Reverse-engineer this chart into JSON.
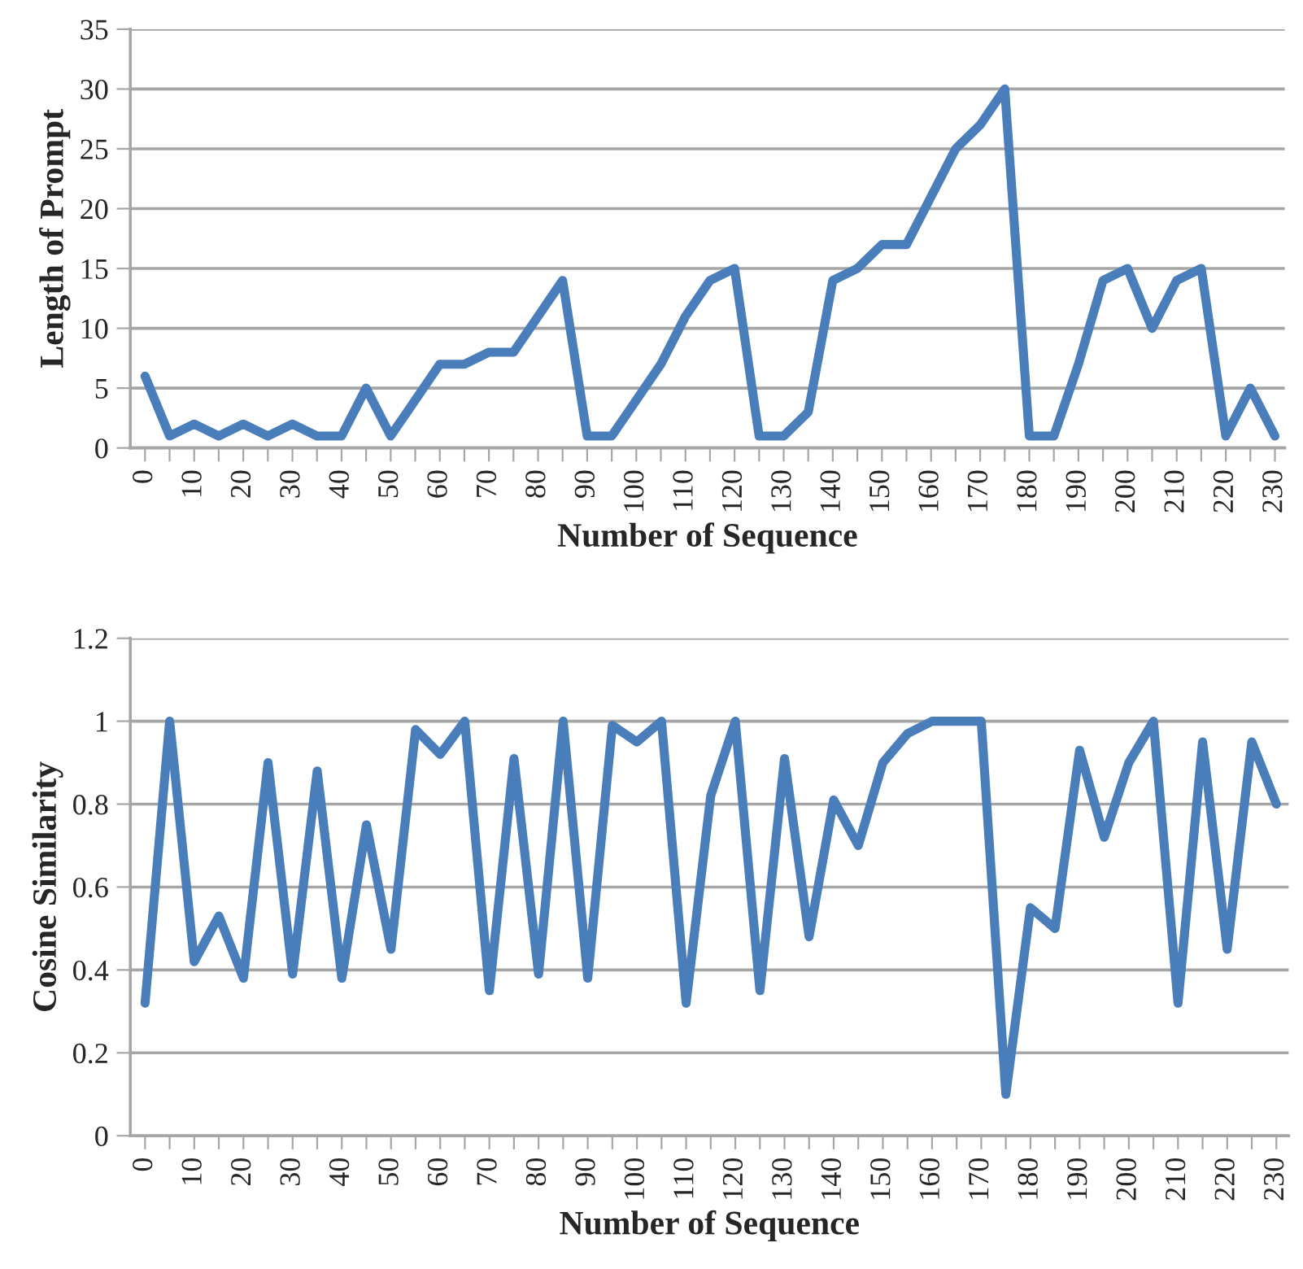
{
  "chart_data": [
    {
      "type": "line",
      "xlabel": "Number of Sequence",
      "ylabel": "Length of Prompt",
      "x": [
        0,
        5,
        10,
        15,
        20,
        25,
        30,
        35,
        40,
        45,
        50,
        55,
        60,
        65,
        70,
        75,
        80,
        85,
        90,
        95,
        100,
        105,
        110,
        115,
        120,
        125,
        130,
        135,
        140,
        145,
        150,
        155,
        160,
        165,
        170,
        175,
        180,
        185,
        190,
        195,
        200,
        205,
        210,
        215,
        220,
        225,
        230
      ],
      "series": [
        {
          "color": "#4a7ebb",
          "values": [
            6,
            1,
            2,
            1,
            2,
            1,
            2,
            1,
            1,
            5,
            1,
            4,
            7,
            7,
            8,
            8,
            11,
            14,
            1,
            1,
            4,
            7,
            11,
            14,
            15,
            1,
            1,
            3,
            14,
            15,
            17,
            17,
            21,
            25,
            27,
            30,
            1,
            1,
            7,
            14,
            15,
            10,
            14,
            15,
            1,
            5,
            1
          ]
        }
      ],
      "xlim": [
        -3,
        232
      ],
      "xticks": [
        0,
        {
          "value": 5,
          "label": null
        },
        10,
        {
          "value": 15,
          "label": null
        },
        20,
        {
          "value": 25,
          "label": null
        },
        30,
        {
          "value": 35,
          "label": null
        },
        40,
        {
          "value": 45,
          "label": null
        },
        50,
        {
          "value": 55,
          "label": null
        },
        60,
        {
          "value": 65,
          "label": null
        },
        70,
        {
          "value": 75,
          "label": null
        },
        80,
        {
          "value": 85,
          "label": null
        },
        90,
        {
          "value": 95,
          "label": null
        },
        100,
        {
          "value": 105,
          "label": null
        },
        110,
        {
          "value": 115,
          "label": null
        },
        120,
        {
          "value": 125,
          "label": null
        },
        130,
        {
          "value": 135,
          "label": null
        },
        140,
        {
          "value": 145,
          "label": null
        },
        150,
        {
          "value": 155,
          "label": null
        },
        160,
        {
          "value": 165,
          "label": null
        },
        170,
        {
          "value": 175,
          "label": null
        },
        180,
        {
          "value": 185,
          "label": null
        },
        190,
        {
          "value": 195,
          "label": null
        },
        200,
        {
          "value": 205,
          "label": null
        },
        210,
        {
          "value": 215,
          "label": null
        },
        220,
        {
          "value": 225,
          "label": null
        },
        230
      ],
      "ylim": [
        0,
        35
      ],
      "yticks": [
        0,
        5,
        10,
        15,
        20,
        25,
        30,
        35
      ],
      "grid": "y",
      "marker": "none",
      "line_style": "solid"
    },
    {
      "type": "line",
      "xlabel": "Number of Sequence",
      "ylabel": "Cosine Similarity",
      "x": [
        0,
        5,
        10,
        15,
        20,
        25,
        30,
        35,
        40,
        45,
        50,
        55,
        60,
        65,
        70,
        75,
        80,
        85,
        90,
        95,
        100,
        105,
        110,
        115,
        120,
        125,
        130,
        135,
        140,
        145,
        150,
        155,
        160,
        165,
        170,
        175,
        180,
        185,
        190,
        195,
        200,
        205,
        210,
        215,
        220,
        225,
        230
      ],
      "series": [
        {
          "color": "#4a7ebb",
          "values": [
            0.32,
            1.0,
            0.42,
            0.53,
            0.38,
            0.9,
            0.39,
            0.88,
            0.38,
            0.75,
            0.45,
            0.98,
            0.92,
            1.0,
            0.35,
            0.91,
            0.39,
            1.0,
            0.38,
            0.99,
            0.95,
            1.0,
            0.32,
            0.82,
            1.0,
            0.35,
            0.91,
            0.48,
            0.81,
            0.7,
            0.9,
            0.97,
            1.0,
            1.0,
            1.0,
            0.1,
            0.55,
            0.5,
            0.93,
            0.72,
            0.9,
            1.0,
            0.32,
            0.95,
            0.45,
            0.95,
            0.8
          ]
        }
      ],
      "xlim": [
        -3,
        232.5
      ],
      "xticks": [
        0,
        {
          "value": 5,
          "label": null
        },
        10,
        {
          "value": 15,
          "label": null
        },
        20,
        {
          "value": 25,
          "label": null
        },
        30,
        {
          "value": 35,
          "label": null
        },
        40,
        {
          "value": 45,
          "label": null
        },
        50,
        {
          "value": 55,
          "label": null
        },
        60,
        {
          "value": 65,
          "label": null
        },
        70,
        {
          "value": 75,
          "label": null
        },
        80,
        {
          "value": 85,
          "label": null
        },
        90,
        {
          "value": 95,
          "label": null
        },
        100,
        {
          "value": 105,
          "label": null
        },
        110,
        {
          "value": 115,
          "label": null
        },
        120,
        {
          "value": 125,
          "label": null
        },
        130,
        {
          "value": 135,
          "label": null
        },
        140,
        {
          "value": 145,
          "label": null
        },
        150,
        {
          "value": 155,
          "label": null
        },
        160,
        {
          "value": 165,
          "label": null
        },
        170,
        {
          "value": 175,
          "label": null
        },
        180,
        {
          "value": 185,
          "label": null
        },
        190,
        {
          "value": 195,
          "label": null
        },
        200,
        {
          "value": 205,
          "label": null
        },
        210,
        {
          "value": 215,
          "label": null
        },
        220,
        {
          "value": 225,
          "label": null
        },
        230
      ],
      "ylim": [
        0,
        1.2
      ],
      "yticks": [
        0,
        {
          "value": 0.2,
          "label": "0.2"
        },
        {
          "value": 0.4,
          "label": "0.4"
        },
        {
          "value": 0.6,
          "label": "0.6"
        },
        {
          "value": 0.8,
          "label": "0.8"
        },
        1,
        {
          "value": 1.2,
          "label": "1.2"
        }
      ],
      "grid": "y",
      "marker": "none",
      "line_style": "solid"
    }
  ]
}
